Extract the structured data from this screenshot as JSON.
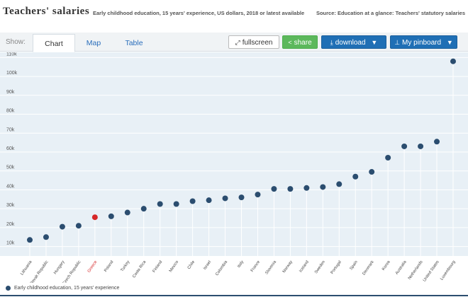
{
  "header": {
    "title": "Teachers' salaries",
    "subtitle": "Early childhood education, 15 years' experience, US dollars, 2018 or latest available",
    "source": "Source: Education at a glance: Teachers' statutory salaries"
  },
  "toolbar": {
    "show_label": "Show:",
    "tabs": [
      "Chart",
      "Map",
      "Table"
    ],
    "active_tab": "Chart",
    "fullscreen_label": "fullscreen",
    "share_label": "share",
    "download_label": "download",
    "pinboard_label": "My pinboard"
  },
  "legend": {
    "label": "Early childhood education, 15 years' experience"
  },
  "colors": {
    "series": "#2b4d6f",
    "highlight": "#d62728",
    "plot_bg": "#e8f0f6",
    "grid": "#ffffff"
  },
  "chart_data": {
    "type": "scatter",
    "categories": [
      "Lithuania",
      "Slovak Republic",
      "Hungary",
      "Czech Republic",
      "Greece",
      "Poland",
      "Turkey",
      "Costa Rica",
      "Finland",
      "Mexico",
      "Chile",
      "Israel",
      "Colombia",
      "Italy",
      "France",
      "Slovenia",
      "Norway",
      "Iceland",
      "Sweden",
      "Portugal",
      "Spain",
      "Denmark",
      "Korea",
      "Australia",
      "Netherlands",
      "United States",
      "Luxembourg"
    ],
    "highlight": "Greece",
    "series": [
      {
        "name": "Early childhood education, 15 years' experience",
        "values": [
          13500,
          15000,
          20500,
          21000,
          25500,
          26000,
          28000,
          30000,
          32500,
          32500,
          34000,
          34500,
          35500,
          36000,
          37500,
          40500,
          40500,
          41000,
          41500,
          43000,
          47000,
          49500,
          57000,
          63000,
          63000,
          65500,
          108000
        ]
      }
    ],
    "yticks": [
      "10k",
      "20k",
      "30k",
      "40k",
      "50k",
      "60k",
      "70k",
      "80k",
      "90k",
      "100k",
      "110k"
    ],
    "ylim": [
      5000,
      112000
    ],
    "grid": true,
    "legend_position": "bottom-left"
  }
}
